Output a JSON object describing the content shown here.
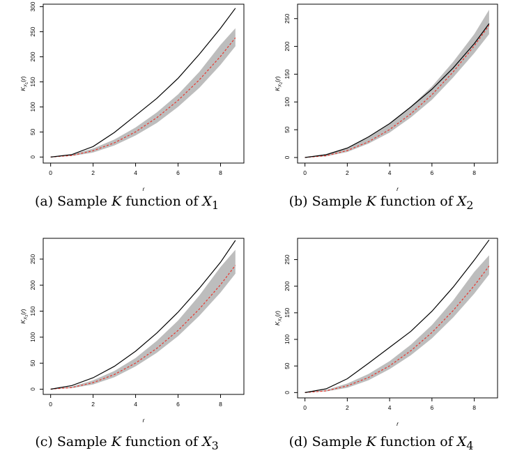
{
  "captions": [
    {
      "label": "(a) Sample",
      "italic": "K",
      "mid": "function of",
      "var": "X",
      "sub": "1"
    },
    {
      "label": "(b) Sample",
      "italic": "K",
      "mid": "function of",
      "var": "X",
      "sub": "2"
    },
    {
      "label": "(c) Sample",
      "italic": "K",
      "mid": "function of",
      "var": "X",
      "sub": "3"
    },
    {
      "label": "(d) Sample",
      "italic": "K",
      "mid": "function of",
      "var": "X",
      "sub": "4"
    }
  ],
  "colors": {
    "observed": "#000000",
    "theoretical": "#e8342b",
    "envelope": "#bdbdbd"
  },
  "chart_data": [
    {
      "type": "line",
      "id": "a",
      "xlabel": "r",
      "ylabel": "K_{X1}(r)",
      "xlim": [
        -0.35,
        9.1
      ],
      "ylim": [
        -12,
        305
      ],
      "xticks": [
        0,
        2,
        4,
        6,
        8
      ],
      "yticks": [
        0,
        50,
        100,
        150,
        200,
        250,
        300
      ],
      "x_max": 8.7,
      "series": [
        {
          "role": "observed",
          "x": [
            0,
            1,
            2,
            3,
            4,
            5,
            6,
            7,
            8,
            8.7
          ],
          "y": [
            0,
            5,
            21,
            49,
            83,
            117,
            157,
            205,
            257,
            297
          ]
        },
        {
          "role": "theoretical",
          "x": [
            0,
            1,
            2,
            3,
            4,
            5,
            6,
            7,
            8,
            8.7
          ],
          "y": [
            0,
            3.2,
            12.6,
            28.3,
            50.3,
            78.5,
            113,
            154,
            201,
            238
          ]
        },
        {
          "role": "envelope",
          "x": [
            0,
            1,
            2,
            3,
            4,
            5,
            6,
            7,
            8,
            8.7
          ],
          "lower": [
            0,
            2,
            9,
            23,
            43,
            68,
            100,
            138,
            184,
            221
          ],
          "upper": [
            0,
            5,
            17,
            35,
            59,
            89,
            125,
            170,
            224,
            257
          ]
        }
      ]
    },
    {
      "type": "line",
      "id": "b",
      "xlabel": "r",
      "ylabel": "K_{X2}(r)",
      "xlim": [
        -0.35,
        9.1
      ],
      "ylim": [
        -10,
        276
      ],
      "xticks": [
        0,
        2,
        4,
        6,
        8
      ],
      "yticks": [
        0,
        50,
        100,
        150,
        200,
        250
      ],
      "x_max": 8.7,
      "series": [
        {
          "role": "observed",
          "x": [
            0,
            1,
            2,
            3,
            4,
            5,
            6,
            7,
            8,
            8.7
          ],
          "y": [
            0,
            5,
            17,
            37,
            61,
            91,
            123,
            161,
            205,
            241
          ]
        },
        {
          "role": "theoretical",
          "x": [
            0,
            1,
            2,
            3,
            4,
            5,
            6,
            7,
            8,
            8.7
          ],
          "y": [
            0,
            3.2,
            12.6,
            28.3,
            50.3,
            78.5,
            113,
            154,
            201,
            238
          ]
        },
        {
          "role": "envelope",
          "x": [
            0,
            1,
            2,
            3,
            4,
            5,
            6,
            7,
            8,
            8.7
          ],
          "lower": [
            0,
            2,
            10,
            25,
            45,
            72,
            104,
            144,
            188,
            222
          ],
          "upper": [
            0,
            6,
            18,
            36,
            60,
            92,
            128,
            172,
            222,
            266
          ]
        }
      ]
    },
    {
      "type": "line",
      "id": "c",
      "xlabel": "r",
      "ylabel": "K_{X3}(r)",
      "xlim": [
        -0.35,
        9.1
      ],
      "ylim": [
        -10,
        290
      ],
      "xticks": [
        0,
        2,
        4,
        6,
        8
      ],
      "yticks": [
        0,
        50,
        100,
        150,
        200,
        250
      ],
      "x_max": 8.7,
      "series": [
        {
          "role": "observed",
          "x": [
            0,
            1,
            2,
            3,
            4,
            5,
            6,
            7,
            8,
            8.7
          ],
          "y": [
            0,
            7,
            22,
            44,
            73,
            108,
            148,
            194,
            244,
            286
          ]
        },
        {
          "role": "theoretical",
          "x": [
            0,
            1,
            2,
            3,
            4,
            5,
            6,
            7,
            8,
            8.7
          ],
          "y": [
            0,
            3.2,
            12.6,
            28.3,
            50.3,
            78.5,
            113,
            154,
            201,
            238
          ]
        },
        {
          "role": "envelope",
          "x": [
            0,
            1,
            2,
            3,
            4,
            5,
            6,
            7,
            8,
            8.7
          ],
          "lower": [
            0,
            2,
            9,
            23,
            44,
            70,
            102,
            141,
            186,
            222
          ],
          "upper": [
            0,
            5,
            17,
            35,
            60,
            93,
            132,
            180,
            235,
            268
          ]
        }
      ]
    },
    {
      "type": "line",
      "id": "d",
      "xlabel": "r",
      "ylabel": "K_{X4}(r)",
      "xlim": [
        -0.35,
        9.1
      ],
      "ylim": [
        -10,
        290
      ],
      "xticks": [
        0,
        2,
        4,
        6,
        8
      ],
      "yticks": [
        0,
        50,
        100,
        150,
        200,
        250
      ],
      "x_max": 8.7,
      "series": [
        {
          "role": "observed",
          "x": [
            0,
            1,
            2,
            3,
            4,
            5,
            6,
            7,
            8,
            8.7
          ],
          "y": [
            0,
            7,
            26,
            55,
            85,
            115,
            153,
            198,
            249,
            287
          ]
        },
        {
          "role": "theoretical",
          "x": [
            0,
            1,
            2,
            3,
            4,
            5,
            6,
            7,
            8,
            8.7
          ],
          "y": [
            0,
            3.2,
            12.6,
            28.3,
            50.3,
            78.5,
            113,
            154,
            201,
            238
          ]
        },
        {
          "role": "envelope",
          "x": [
            0,
            1,
            2,
            3,
            4,
            5,
            6,
            7,
            8,
            8.7
          ],
          "lower": [
            0,
            2,
            9,
            23,
            44,
            70,
            102,
            141,
            186,
            222
          ],
          "upper": [
            0,
            5,
            17,
            35,
            59,
            90,
            127,
            173,
            227,
            258
          ]
        }
      ]
    }
  ]
}
